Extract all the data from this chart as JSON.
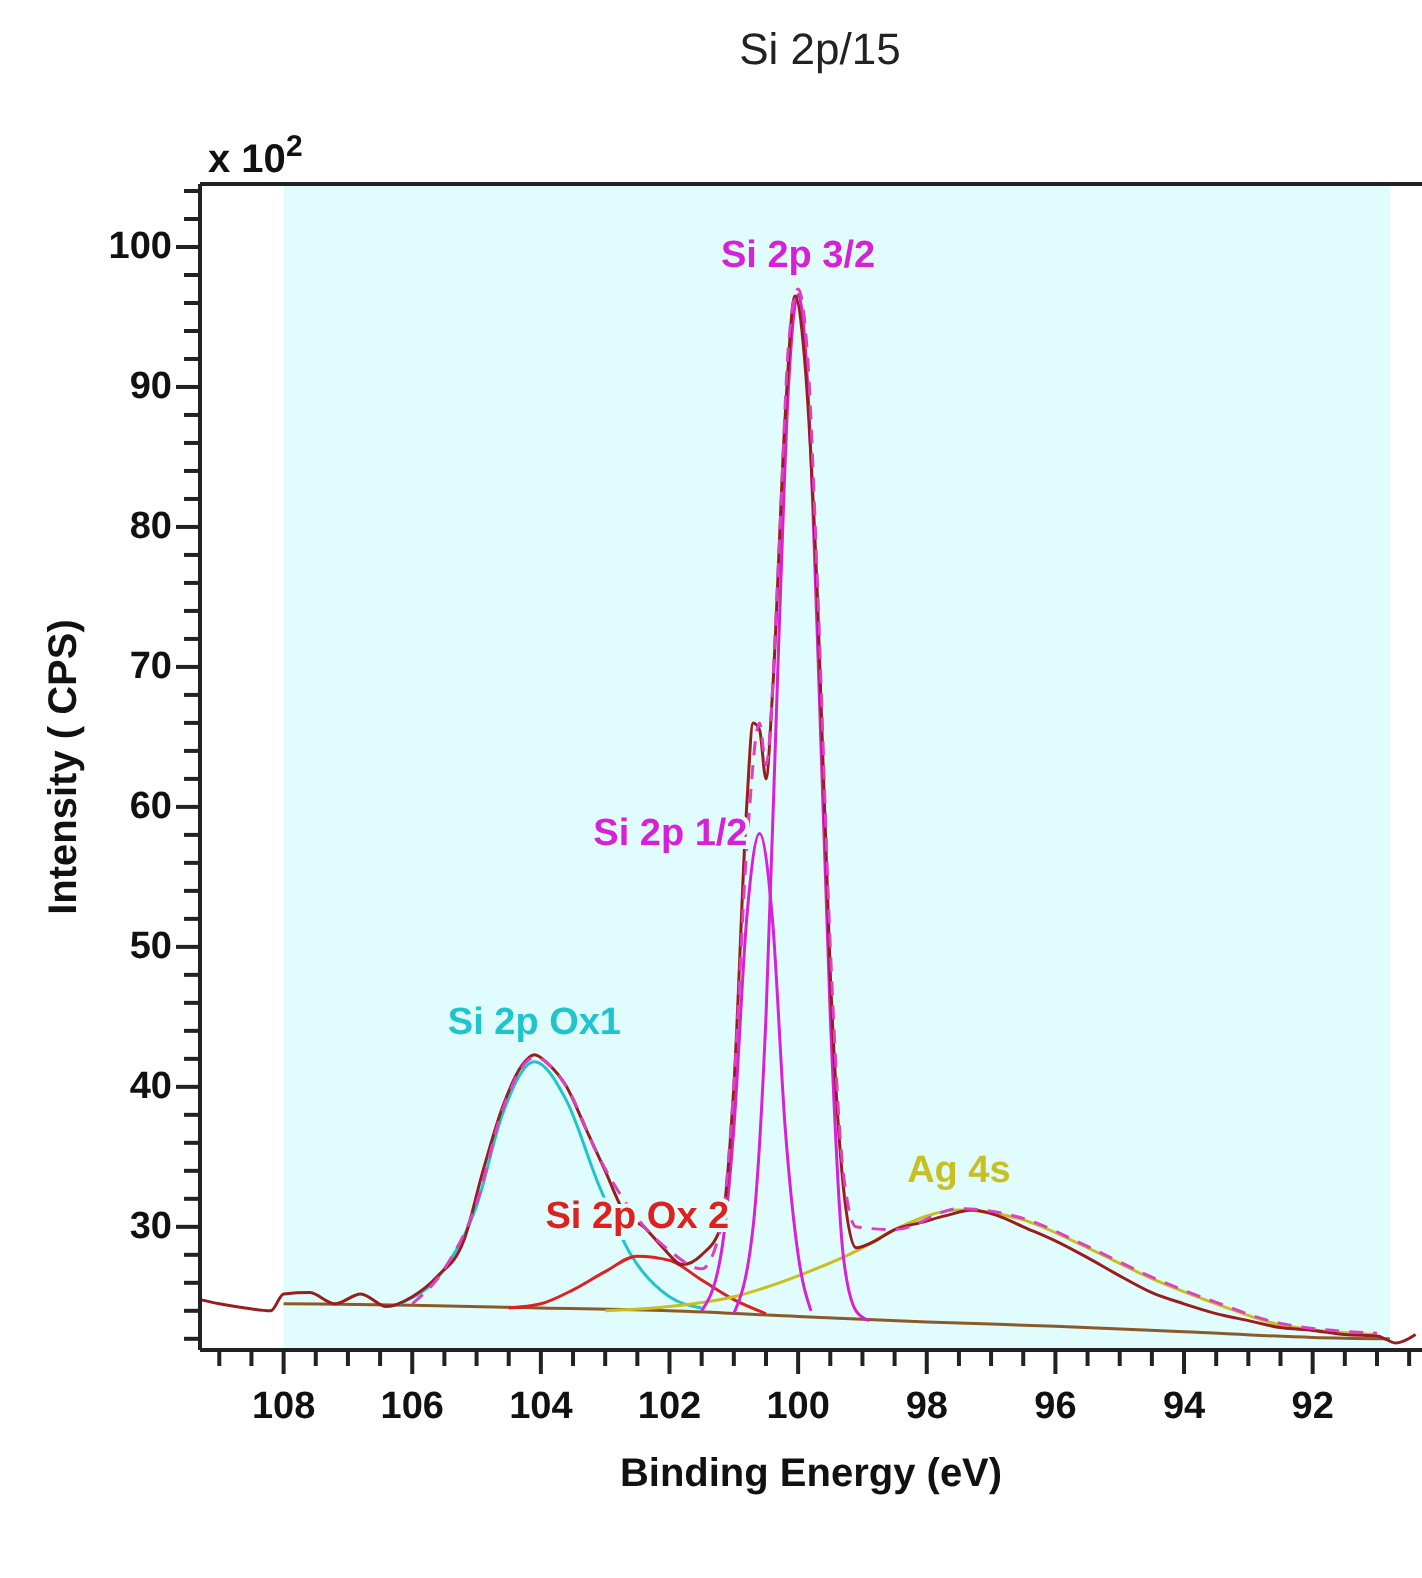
{
  "chart_data": {
    "type": "line",
    "title": "Si 2p/15",
    "xlabel": "Binding Energy (eV)",
    "ylabel": "Intensity ( CPS)",
    "annotations": [
      "x 10$^{2}$"
    ],
    "xlim": [
      109.3,
      90.3
    ],
    "ylim": [
      21.2,
      104.5
    ],
    "xticks": [
      {
        "value": 109,
        "label": null
      },
      {
        "value": 108.5,
        "label": null
      },
      108,
      {
        "value": 107.5,
        "label": null
      },
      {
        "value": 107,
        "label": null
      },
      {
        "value": 106.5,
        "label": null
      },
      106,
      {
        "value": 105.5,
        "label": null
      },
      {
        "value": 105,
        "label": null
      },
      {
        "value": 104.5,
        "label": null
      },
      104,
      {
        "value": 103.5,
        "label": null
      },
      {
        "value": 103,
        "label": null
      },
      {
        "value": 102.5,
        "label": null
      },
      102,
      {
        "value": 101.5,
        "label": null
      },
      {
        "value": 101,
        "label": null
      },
      {
        "value": 100.5,
        "label": null
      },
      100,
      {
        "value": 99.5,
        "label": null
      },
      {
        "value": 99,
        "label": null
      },
      {
        "value": 98.5,
        "label": null
      },
      98,
      {
        "value": 97.5,
        "label": null
      },
      {
        "value": 97,
        "label": null
      },
      {
        "value": 96.5,
        "label": null
      },
      96,
      {
        "value": 95.5,
        "label": null
      },
      {
        "value": 95,
        "label": null
      },
      {
        "value": 94.5,
        "label": null
      },
      94,
      {
        "value": 93.5,
        "label": null
      },
      {
        "value": 93,
        "label": null
      },
      {
        "value": 92.5,
        "label": null
      },
      92,
      {
        "value": 91.5,
        "label": null
      },
      {
        "value": 91,
        "label": null
      },
      {
        "value": 90.5,
        "label": null
      }
    ],
    "yticks": [
      {
        "value": 22,
        "label": null
      },
      {
        "value": 24,
        "label": null
      },
      {
        "value": 26,
        "label": null
      },
      {
        "value": 28,
        "label": null
      },
      30,
      {
        "value": 32,
        "label": null
      },
      {
        "value": 34,
        "label": null
      },
      {
        "value": 36,
        "label": null
      },
      {
        "value": 38,
        "label": null
      },
      40,
      {
        "value": 42,
        "label": null
      },
      {
        "value": 44,
        "label": null
      },
      {
        "value": 46,
        "label": null
      },
      {
        "value": 48,
        "label": null
      },
      50,
      {
        "value": 52,
        "label": null
      },
      {
        "value": 54,
        "label": null
      },
      {
        "value": 56,
        "label": null
      },
      {
        "value": 58,
        "label": null
      },
      60,
      {
        "value": 62,
        "label": null
      },
      {
        "value": 64,
        "label": null
      },
      {
        "value": 66,
        "label": null
      },
      {
        "value": 68,
        "label": null
      },
      70,
      {
        "value": 72,
        "label": null
      },
      {
        "value": 74,
        "label": null
      },
      {
        "value": 76,
        "label": null
      },
      {
        "value": 78,
        "label": null
      },
      80,
      {
        "value": 82,
        "label": null
      },
      {
        "value": 84,
        "label": null
      },
      {
        "value": 86,
        "label": null
      },
      {
        "value": 88,
        "label": null
      },
      90,
      {
        "value": 92,
        "label": null
      },
      {
        "value": 94,
        "label": null
      },
      {
        "value": 96,
        "label": null
      },
      {
        "value": 98,
        "label": null
      },
      100,
      {
        "value": 102,
        "label": null
      },
      {
        "value": 104,
        "label": null
      }
    ],
    "bands": [
      {
        "axis": "x",
        "from": 108,
        "to": 90.8,
        "color": "#e0fcfc"
      }
    ],
    "grid": false,
    "legend": false,
    "series": [
      {
        "color": "#8b5a2b",
        "x": [
          108,
          106,
          104,
          102,
          100,
          98,
          96,
          94,
          92,
          90.8
        ],
        "values": [
          24.5,
          24.4,
          24.2,
          24.0,
          23.6,
          23.2,
          22.9,
          22.5,
          22.1,
          22.0
        ]
      },
      {
        "name": "Si 2p Ox1",
        "color": "#20c4cc",
        "x": [
          106.2,
          105.5,
          105,
          104.6,
          104.1,
          103.6,
          103.1,
          102.6,
          102,
          101.5
        ],
        "values": [
          24.5,
          27,
          31.5,
          38,
          41.8,
          39,
          33,
          28,
          25,
          24.2
        ]
      },
      {
        "name": "Si 2p Ox 2",
        "color": "#dd2020",
        "x": [
          104.5,
          104,
          103.5,
          103,
          102.5,
          102,
          101.5,
          101,
          100.5
        ],
        "values": [
          24.2,
          24.5,
          25.5,
          26.8,
          27.9,
          27.6,
          26.2,
          24.8,
          23.8
        ]
      },
      {
        "name": "Ag 4s",
        "color": "#c8c020",
        "x": [
          103,
          102,
          101,
          100,
          99,
          98.5,
          97.5,
          96.5,
          95.5,
          94.5,
          93.5,
          92.5,
          91
        ],
        "values": [
          24,
          24.3,
          25,
          26.5,
          28.5,
          29.8,
          31.2,
          30.5,
          28.5,
          26.3,
          24.5,
          23,
          22.3
        ]
      },
      {
        "name": "Si 2p 1/2",
        "color": "#d820d8",
        "x": [
          101.5,
          101.2,
          101,
          100.8,
          100.6,
          100.4,
          100.2,
          100,
          99.8
        ],
        "values": [
          24,
          28,
          37,
          52,
          58.1,
          52,
          37,
          28,
          24
        ]
      },
      {
        "name": "Si 2p 3/2",
        "color": "#d820d8",
        "x": [
          101,
          100.7,
          100.5,
          100.3,
          100.15,
          100,
          99.85,
          99.7,
          99.5,
          99.3,
          99.1,
          98.9
        ],
        "values": [
          23.8,
          30,
          45,
          72,
          90,
          96.6,
          90,
          72,
          45,
          28,
          24,
          23.3
        ]
      },
      {
        "color": "#9b1c1c",
        "x": [
          109.3,
          109,
          108.6,
          108.2,
          108,
          107.6,
          107.2,
          106.8,
          106.4,
          106,
          105.6,
          105.2,
          104.9,
          104.6,
          104.3,
          104.1,
          103.9,
          103.6,
          103.3,
          103,
          102.7,
          102.4,
          102.1,
          101.8,
          101.5,
          101.2,
          101,
          100.8,
          100.7,
          100.6,
          100.5,
          100.4,
          100.2,
          100.05,
          99.9,
          99.7,
          99.5,
          99.3,
          99.1,
          98.8,
          98.5,
          98.1,
          97.7,
          97.3,
          96.9,
          96.5,
          96,
          95.5,
          95,
          94.5,
          94,
          93.5,
          93,
          92.5,
          92,
          91.5,
          91,
          90.7,
          90.4
        ],
        "values": [
          24.8,
          24.5,
          24.2,
          24,
          25.2,
          25.3,
          24.5,
          25.2,
          24.3,
          25,
          26.5,
          29,
          34,
          38.5,
          41.5,
          42.3,
          41.7,
          40,
          37,
          34,
          31,
          30,
          28.5,
          27.3,
          28,
          30,
          40,
          60,
          66,
          65.5,
          62,
          68,
          88,
          96.5,
          92,
          75,
          48,
          33,
          28.5,
          29,
          29.8,
          30.3,
          30.8,
          31.2,
          30.8,
          30,
          29,
          27.8,
          26.5,
          25.3,
          24.5,
          23.8,
          23.3,
          22.8,
          22.6,
          22.3,
          22.2,
          21.7,
          22.3
        ]
      },
      {
        "color": "#e040c0",
        "line_style": "dashed",
        "x": [
          106,
          105.5,
          105,
          104.6,
          104.1,
          103.6,
          103.1,
          102.6,
          102,
          101.5,
          101.2,
          101,
          100.8,
          100.6,
          100.5,
          100.3,
          100.15,
          100,
          99.85,
          99.7,
          99.5,
          99.3,
          99.1,
          98.5,
          97.5,
          96.5,
          95.5,
          94.5,
          93.5,
          92.5,
          91
        ],
        "values": [
          24.5,
          27,
          31.7,
          38.3,
          42.1,
          40,
          35,
          31.2,
          28.3,
          27,
          30,
          40,
          57,
          66,
          63,
          78,
          93,
          97,
          92,
          76,
          50,
          34,
          30,
          29.8,
          31.3,
          30.6,
          28.6,
          26.4,
          24.6,
          23.1,
          22.4
        ]
      }
    ]
  }
}
